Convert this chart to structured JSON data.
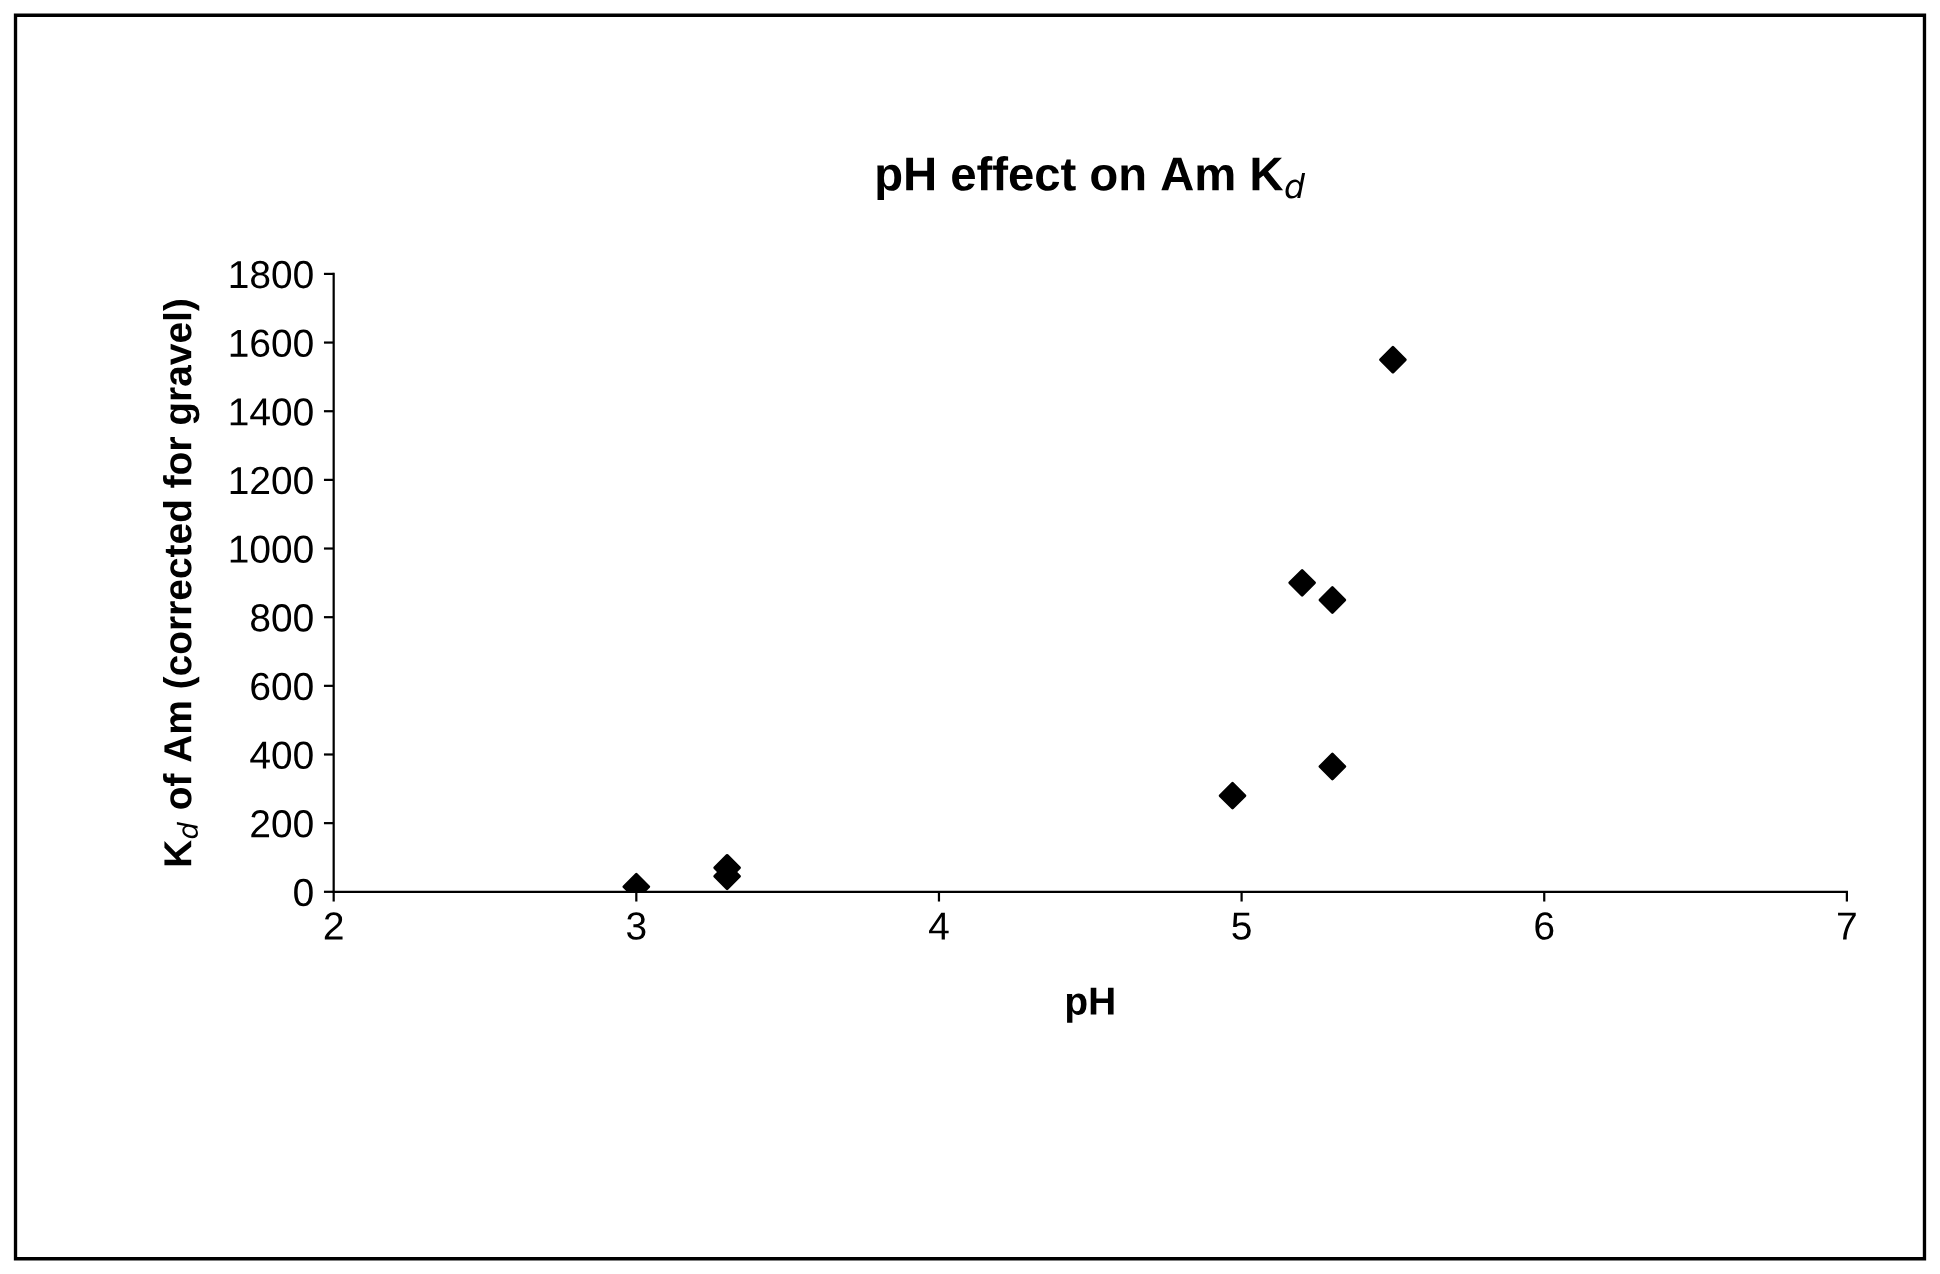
{
  "chart_data": {
    "type": "scatter",
    "title": "pH effect on Am K$_{d}$",
    "xlabel": "pH",
    "ylabel": "K$_{d}$ of Am (corrected for gravel)",
    "x": [
      3.0,
      3.3,
      3.3,
      4.97,
      5.2,
      5.3,
      5.3,
      5.5
    ],
    "series": [
      {
        "color": "#000000",
        "values": [
          15,
          45,
          70,
          280,
          900,
          850,
          365,
          1550
        ]
      }
    ],
    "xlim": [
      2,
      7
    ],
    "xticks": [
      2,
      3,
      4,
      5,
      6,
      7
    ],
    "ylim": [
      0,
      1800
    ],
    "yticks": [
      0,
      200,
      400,
      600,
      800,
      1000,
      1200,
      1400,
      1600,
      1800
    ],
    "marker": "diamond",
    "grid": false,
    "legend": false
  }
}
